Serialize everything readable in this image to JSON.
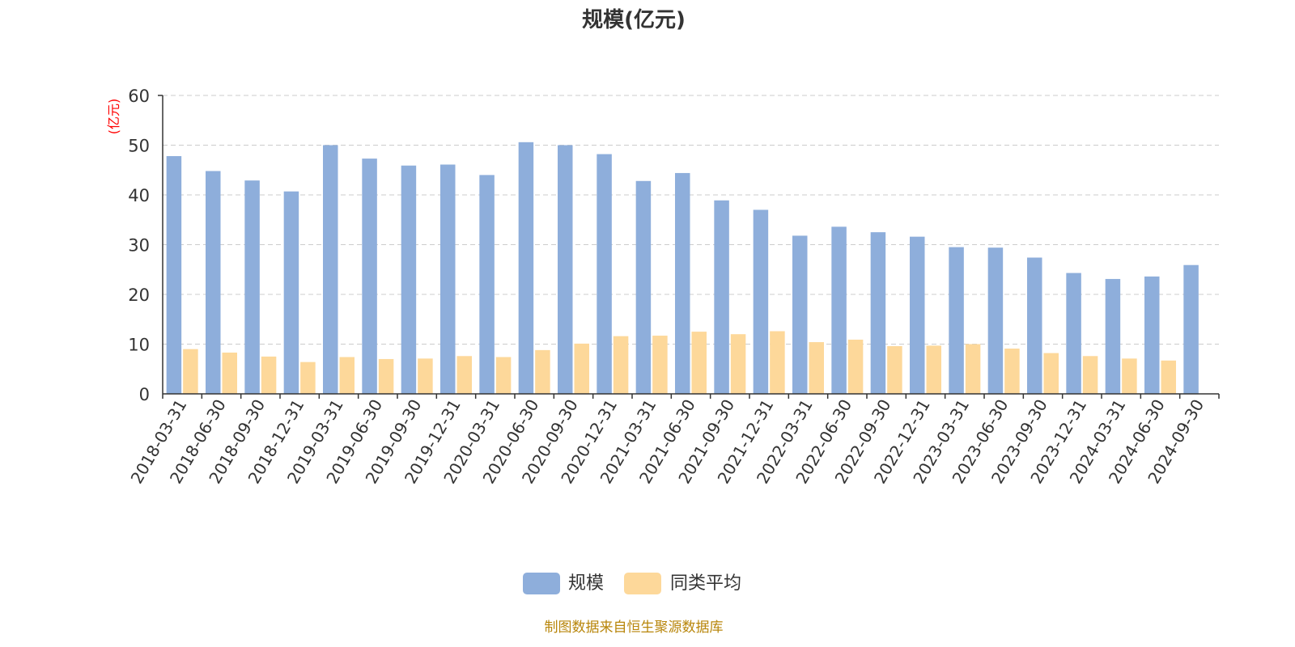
{
  "colors": {
    "series_main": "#8eaedb",
    "series_avg": "#fdd89a",
    "axis": "#333333",
    "grid": "#cccccc",
    "unit_label": "#ff0000",
    "source": "#b8860b"
  },
  "chart_data": {
    "type": "bar",
    "title": "规模(亿元)",
    "ylabel": "(亿元)",
    "xlabel": "",
    "ylim": [
      0,
      60
    ],
    "yticks": [
      0,
      10,
      20,
      30,
      40,
      50,
      60
    ],
    "grid": true,
    "legend_position": "bottom-center",
    "categories": [
      "2018-03-31",
      "2018-06-30",
      "2018-09-30",
      "2018-12-31",
      "2019-03-31",
      "2019-06-30",
      "2019-09-30",
      "2019-12-31",
      "2020-03-31",
      "2020-06-30",
      "2020-09-30",
      "2020-12-31",
      "2021-03-31",
      "2021-06-30",
      "2021-09-30",
      "2021-12-31",
      "2022-03-31",
      "2022-06-30",
      "2022-09-30",
      "2022-12-31",
      "2023-03-31",
      "2023-06-30",
      "2023-09-30",
      "2023-12-31",
      "2024-03-31",
      "2024-06-30",
      "2024-09-30"
    ],
    "series": [
      {
        "name": "规模",
        "color_key": "series_main",
        "values": [
          47.8,
          44.8,
          42.9,
          40.7,
          50.0,
          47.3,
          45.9,
          46.1,
          44.0,
          50.6,
          50.0,
          48.2,
          42.8,
          44.4,
          38.9,
          37.0,
          31.8,
          33.6,
          32.5,
          31.6,
          29.5,
          29.4,
          27.4,
          24.3,
          23.1,
          23.6,
          25.9
        ]
      },
      {
        "name": "同类平均",
        "color_key": "series_avg",
        "values": [
          9.0,
          8.3,
          7.5,
          6.4,
          7.4,
          7.0,
          7.1,
          7.6,
          7.4,
          8.8,
          10.1,
          11.6,
          11.7,
          12.5,
          12.0,
          12.6,
          10.4,
          10.9,
          9.6,
          9.7,
          10.0,
          9.1,
          8.2,
          7.6,
          7.1,
          6.7,
          null
        ]
      }
    ]
  },
  "source_text": "制图数据来自恒生聚源数据库"
}
